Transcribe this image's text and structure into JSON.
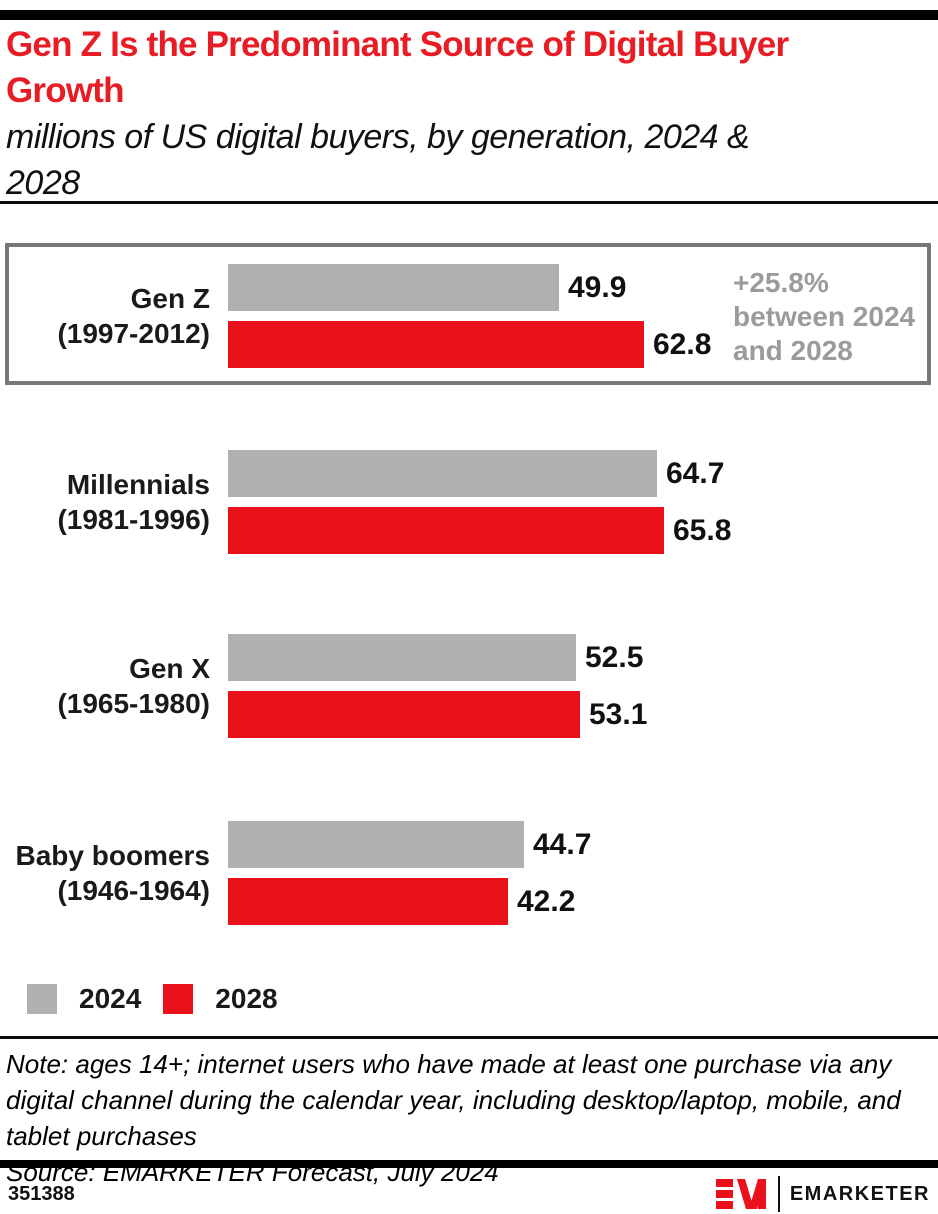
{
  "header": {
    "title_lines": [
      "Gen Z Is the Predominant Source of Digital Buyer",
      "Growth"
    ],
    "subtitle_lines": [
      "millions of US digital buyers, by generation, 2024 &",
      "2028"
    ]
  },
  "chart_data": {
    "type": "bar",
    "orientation": "horizontal",
    "title": "Gen Z Is the Predominant Source of Digital Buyer Growth",
    "subtitle": "millions of US digital buyers, by generation, 2024 & 2028",
    "unit": "millions of US digital buyers",
    "categories": [
      "Gen Z",
      "Millennials",
      "Gen X",
      "Baby boomers"
    ],
    "category_sublabels": [
      "(1997-2012)",
      "(1981-1996)",
      "(1965-1980)",
      "(1946-1964)"
    ],
    "series": [
      {
        "name": "2024",
        "color": "#B0B0B0",
        "values": [
          49.9,
          64.7,
          52.5,
          44.7
        ]
      },
      {
        "name": "2028",
        "color": "#EA111A",
        "values": [
          62.8,
          65.8,
          53.1,
          42.2
        ]
      }
    ],
    "annotation": "+25.8% between 2024 and 2028",
    "annotation_target": "Gen Z",
    "xlim": [
      0,
      70
    ],
    "grid": false,
    "value_labels": true,
    "legend_position": "bottom-left",
    "highlighted_category": "Gen Z"
  },
  "footnote": {
    "note": "Note: ages 14+; internet users who have made at least one purchase via any digital channel during the calendar year, including desktop/laptop, mobile, and tablet purchases",
    "source": "Source: EMARKETER Forecast, July 2024"
  },
  "footer": {
    "chart_id": "351388",
    "brand": "EMARKETER"
  },
  "colors": {
    "title_red": "#E81C24",
    "brand_red": "#EA111A",
    "bar_gray": "#B0B0B0",
    "annotation_gray": "#9B9B9B",
    "box_border_gray": "#77787A"
  }
}
